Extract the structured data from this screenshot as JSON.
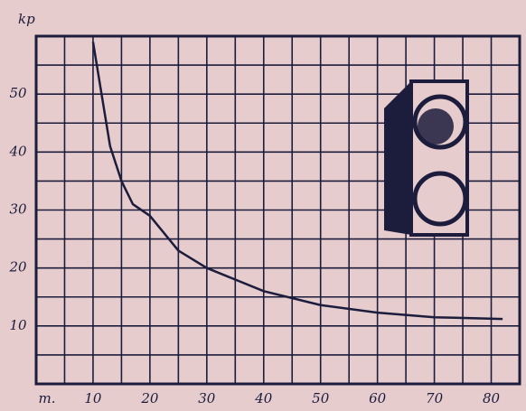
{
  "chart_data": {
    "type": "line",
    "y_label": "kp",
    "x_label": "m.",
    "x": [
      10,
      11,
      12,
      13,
      15,
      17,
      20,
      25,
      30,
      40,
      50,
      60,
      70,
      82
    ],
    "series": [
      {
        "color": "#1c1c3c",
        "values": [
          59,
          53,
          47,
          41,
          35,
          31,
          29,
          23,
          20,
          16,
          13.6,
          12.3,
          11.5,
          11.2
        ]
      }
    ],
    "xlim": [
      0,
      85
    ],
    "xticks": [
      10,
      20,
      30,
      40,
      50,
      60,
      70,
      80
    ],
    "ylim": [
      0,
      60
    ],
    "yticks": [
      10,
      20,
      30,
      40,
      50
    ],
    "grid": true
  }
}
